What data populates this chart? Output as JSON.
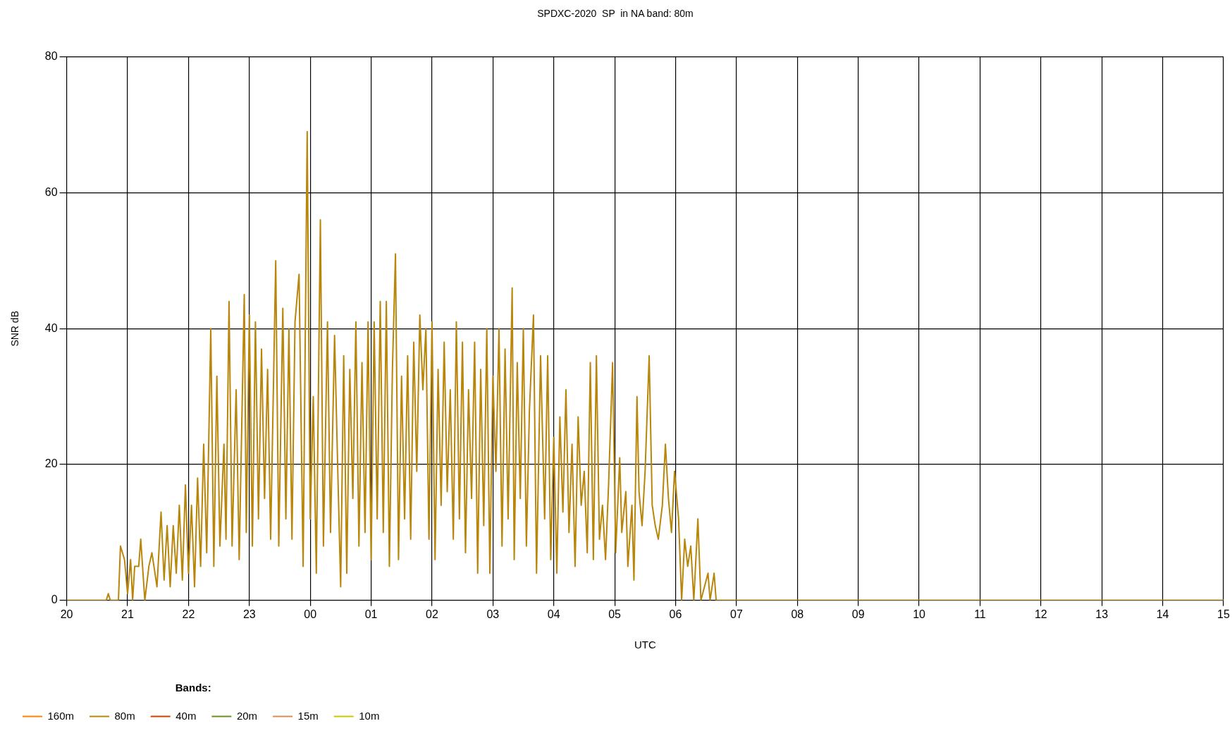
{
  "chart_data": {
    "type": "line",
    "title": "SPDXC-2020  SP  in NA band: 80m",
    "xlabel": "UTC",
    "ylabel": "SNR dB",
    "legend_title": "Bands:",
    "legend": "bottom left",
    "grid": true,
    "xlim": [
      "2020-04-04T20:00",
      "2020-04-05T15:00"
    ],
    "xticks": [
      {
        "value": "2020-04-04T20:00",
        "label": "20"
      },
      {
        "value": "2020-04-04T21:00",
        "label": "21"
      },
      {
        "value": "2020-04-04T22:00",
        "label": "22"
      },
      {
        "value": "2020-04-04T23:00",
        "label": "23"
      },
      {
        "value": "2020-04-05T00:00",
        "label": "00"
      },
      {
        "value": "2020-04-05T01:00",
        "label": "01"
      },
      {
        "value": "2020-04-05T02:00",
        "label": "02"
      },
      {
        "value": "2020-04-05T03:00",
        "label": "03"
      },
      {
        "value": "2020-04-05T04:00",
        "label": "04"
      },
      {
        "value": "2020-04-05T05:00",
        "label": "05"
      },
      {
        "value": "2020-04-05T06:00",
        "label": "06"
      },
      {
        "value": "2020-04-05T07:00",
        "label": "07"
      },
      {
        "value": "2020-04-05T08:00",
        "label": "08"
      },
      {
        "value": "2020-04-05T09:00",
        "label": "09"
      },
      {
        "value": "2020-04-05T10:00",
        "label": "10"
      },
      {
        "value": "2020-04-05T11:00",
        "label": "11"
      },
      {
        "value": "2020-04-05T12:00",
        "label": "12"
      },
      {
        "value": "2020-04-05T13:00",
        "label": "13"
      },
      {
        "value": "2020-04-05T14:00",
        "label": "14"
      },
      {
        "value": "2020-04-05T15:00",
        "label": "15"
      }
    ],
    "ylim": [
      0,
      80
    ],
    "yticks": [
      0,
      20,
      40,
      60,
      80
    ],
    "series": [
      {
        "name": "160m",
        "color": "#ff8000"
      },
      {
        "name": "80m",
        "color": "#b8860b",
        "x": [
          "2020-04-04T20:00",
          "2020-04-04T20:39",
          "2020-04-04T20:41",
          "2020-04-04T20:43",
          "2020-04-04T20:51",
          "2020-04-04T20:53",
          "2020-04-04T20:57",
          "2020-04-04T21:00",
          "2020-04-04T21:03",
          "2020-04-04T21:05",
          "2020-04-04T21:07",
          "2020-04-04T21:11",
          "2020-04-04T21:13",
          "2020-04-04T21:17",
          "2020-04-04T21:21",
          "2020-04-04T21:24",
          "2020-04-04T21:29",
          "2020-04-04T21:33",
          "2020-04-04T21:36",
          "2020-04-04T21:39",
          "2020-04-04T21:42",
          "2020-04-04T21:45",
          "2020-04-04T21:48",
          "2020-04-04T21:51",
          "2020-04-04T21:54",
          "2020-04-04T21:57",
          "2020-04-04T22:00",
          "2020-04-04T22:03",
          "2020-04-04T22:06",
          "2020-04-04T22:09",
          "2020-04-04T22:12",
          "2020-04-04T22:15",
          "2020-04-04T22:18",
          "2020-04-04T22:22",
          "2020-04-04T22:25",
          "2020-04-04T22:28",
          "2020-04-04T22:31",
          "2020-04-04T22:35",
          "2020-04-04T22:37",
          "2020-04-04T22:40",
          "2020-04-04T22:43",
          "2020-04-04T22:47",
          "2020-04-04T22:50",
          "2020-04-04T22:55",
          "2020-04-04T22:57",
          "2020-04-04T23:00",
          "2020-04-04T23:03",
          "2020-04-04T23:06",
          "2020-04-04T23:09",
          "2020-04-04T23:12",
          "2020-04-04T23:15",
          "2020-04-04T23:18",
          "2020-04-04T23:21",
          "2020-04-04T23:26",
          "2020-04-04T23:29",
          "2020-04-04T23:33",
          "2020-04-04T23:36",
          "2020-04-04T23:39",
          "2020-04-04T23:42",
          "2020-04-04T23:45",
          "2020-04-04T23:49",
          "2020-04-04T23:53",
          "2020-04-04T23:57",
          "2020-04-05T00:00",
          "2020-04-05T00:03",
          "2020-04-05T00:06",
          "2020-04-05T00:10",
          "2020-04-05T00:13",
          "2020-04-05T00:17",
          "2020-04-05T00:20",
          "2020-04-05T00:24",
          "2020-04-05T00:27",
          "2020-04-05T00:30",
          "2020-04-05T00:33",
          "2020-04-05T00:36",
          "2020-04-05T00:39",
          "2020-04-05T00:42",
          "2020-04-05T00:45",
          "2020-04-05T00:48",
          "2020-04-05T00:51",
          "2020-04-05T00:54",
          "2020-04-05T00:57",
          "2020-04-05T01:00",
          "2020-04-05T01:03",
          "2020-04-05T01:06",
          "2020-04-05T01:09",
          "2020-04-05T01:12",
          "2020-04-05T01:15",
          "2020-04-05T01:18",
          "2020-04-05T01:21",
          "2020-04-05T01:24",
          "2020-04-05T01:27",
          "2020-04-05T01:30",
          "2020-04-05T01:33",
          "2020-04-05T01:36",
          "2020-04-05T01:39",
          "2020-04-05T01:42",
          "2020-04-05T01:45",
          "2020-04-05T01:48",
          "2020-04-05T01:51",
          "2020-04-05T01:54",
          "2020-04-05T01:57",
          "2020-04-05T02:00",
          "2020-04-05T02:03",
          "2020-04-05T02:06",
          "2020-04-05T02:09",
          "2020-04-05T02:12",
          "2020-04-05T02:15",
          "2020-04-05T02:18",
          "2020-04-05T02:21",
          "2020-04-05T02:24",
          "2020-04-05T02:27",
          "2020-04-05T02:30",
          "2020-04-05T02:33",
          "2020-04-05T02:36",
          "2020-04-05T02:39",
          "2020-04-05T02:42",
          "2020-04-05T02:45",
          "2020-04-05T02:48",
          "2020-04-05T02:51",
          "2020-04-05T02:54",
          "2020-04-05T02:57",
          "2020-04-05T03:00",
          "2020-04-05T03:03",
          "2020-04-05T03:06",
          "2020-04-05T03:09",
          "2020-04-05T03:12",
          "2020-04-05T03:15",
          "2020-04-05T03:19",
          "2020-04-05T03:21",
          "2020-04-05T03:24",
          "2020-04-05T03:27",
          "2020-04-05T03:30",
          "2020-04-05T03:33",
          "2020-04-05T03:36",
          "2020-04-05T03:40",
          "2020-04-05T03:43",
          "2020-04-05T03:47",
          "2020-04-05T03:51",
          "2020-04-05T03:54",
          "2020-04-05T03:57",
          "2020-04-05T04:00",
          "2020-04-05T04:03",
          "2020-04-05T04:06",
          "2020-04-05T04:09",
          "2020-04-05T04:12",
          "2020-04-05T04:15",
          "2020-04-05T04:18",
          "2020-04-05T04:21",
          "2020-04-05T04:24",
          "2020-04-05T04:27",
          "2020-04-05T04:30",
          "2020-04-05T04:33",
          "2020-04-05T04:36",
          "2020-04-05T04:39",
          "2020-04-05T04:42",
          "2020-04-05T04:45",
          "2020-04-05T04:48",
          "2020-04-05T04:51",
          "2020-04-05T04:54",
          "2020-04-05T04:58",
          "2020-04-05T05:01",
          "2020-04-05T05:05",
          "2020-04-05T05:07",
          "2020-04-05T05:11",
          "2020-04-05T05:13",
          "2020-04-05T05:17",
          "2020-04-05T05:19",
          "2020-04-05T05:22",
          "2020-04-05T05:24",
          "2020-04-05T05:27",
          "2020-04-05T05:30",
          "2020-04-05T05:34",
          "2020-04-05T05:37",
          "2020-04-05T05:40",
          "2020-04-05T05:43",
          "2020-04-05T05:47",
          "2020-04-05T05:50",
          "2020-04-05T05:53",
          "2020-04-05T05:56",
          "2020-04-05T05:59",
          "2020-04-05T06:03",
          "2020-04-05T06:06",
          "2020-04-05T06:09",
          "2020-04-05T06:12",
          "2020-04-05T06:15",
          "2020-04-05T06:18",
          "2020-04-05T06:22",
          "2020-04-05T06:25",
          "2020-04-05T06:32",
          "2020-04-05T06:34",
          "2020-04-05T06:38",
          "2020-04-05T06:40",
          "2020-04-05T15:00"
        ],
        "values": [
          0,
          0,
          1,
          0,
          0,
          8,
          6,
          1,
          6,
          0,
          5,
          5,
          9,
          0,
          5,
          7,
          2,
          13,
          3,
          11,
          2,
          11,
          4,
          14,
          3,
          17,
          4,
          14,
          2,
          18,
          5,
          23,
          7,
          40,
          5,
          33,
          8,
          23,
          9,
          44,
          8,
          31,
          6,
          45,
          10,
          42,
          8,
          41,
          12,
          37,
          15,
          34,
          9,
          50,
          8,
          43,
          12,
          40,
          9,
          41,
          48,
          5,
          69,
          12,
          30,
          4,
          56,
          8,
          41,
          10,
          39,
          20,
          2,
          36,
          4,
          34,
          15,
          41,
          8,
          35,
          10,
          41,
          6,
          41,
          12,
          44,
          10,
          44,
          5,
          34,
          51,
          6,
          33,
          12,
          36,
          9,
          38,
          19,
          42,
          31,
          40,
          9,
          41,
          6,
          34,
          14,
          38,
          16,
          31,
          9,
          41,
          12,
          38,
          7,
          31,
          15,
          38,
          4,
          34,
          11,
          40,
          4,
          33,
          19,
          40,
          8,
          37,
          12,
          46,
          6,
          35,
          15,
          40,
          8,
          28,
          42,
          4,
          36,
          12,
          36,
          6,
          24,
          4,
          27,
          13,
          31,
          10,
          23,
          5,
          27,
          14,
          19,
          7,
          35,
          6,
          36,
          9,
          14,
          6,
          17,
          35,
          7,
          21,
          10,
          16,
          5,
          14,
          3,
          30,
          16,
          11,
          19,
          36,
          14,
          11,
          9,
          14,
          23,
          15,
          10,
          19,
          12,
          0,
          9,
          5,
          8,
          0,
          12,
          0,
          4,
          0,
          4,
          0,
          0
        ]
      },
      {
        "name": "40m",
        "color": "#cc4000"
      },
      {
        "name": "20m",
        "color": "#6b8e23"
      },
      {
        "name": "15m",
        "color": "#d98c4f"
      },
      {
        "name": "10m",
        "color": "#c8c800"
      }
    ]
  }
}
